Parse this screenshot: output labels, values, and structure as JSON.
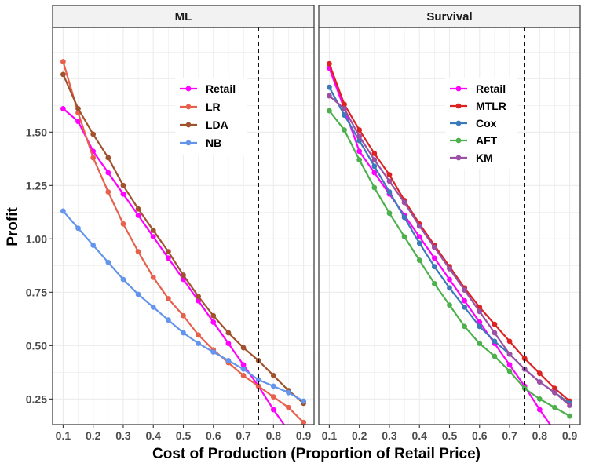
{
  "chart_data": {
    "type": "line",
    "xlabel": "Cost of Production (Proportion of Retail Price)",
    "ylabel": "Profit",
    "x": [
      0.1,
      0.15,
      0.2,
      0.25,
      0.3,
      0.35,
      0.4,
      0.45,
      0.5,
      0.55,
      0.6,
      0.65,
      0.7,
      0.75,
      0.8,
      0.85,
      0.9
    ],
    "xticks": [
      0.1,
      0.2,
      0.3,
      0.4,
      0.5,
      0.6,
      0.7,
      0.8,
      0.9
    ],
    "xtick_labels": [
      "0.1",
      "0.2",
      "0.3",
      "0.4",
      "0.5",
      "0.6",
      "0.7",
      "0.8",
      "0.9"
    ],
    "yticks": [
      0.25,
      0.5,
      0.75,
      1.0,
      1.25,
      1.5
    ],
    "ytick_labels": [
      "0.25",
      "0.50",
      "0.75",
      "1.00",
      "1.25",
      "1.50"
    ],
    "xlim": [
      0.065,
      0.935
    ],
    "ylim": [
      0.13,
      1.99
    ],
    "vline_x": 0.75,
    "grid": true,
    "panels": [
      {
        "title": "ML",
        "legend_position": "top-center",
        "series": [
          {
            "name": "Retail",
            "color": "#ff00ff",
            "values": [
              1.61,
              1.55,
              1.41,
              1.31,
              1.21,
              1.11,
              1.01,
              0.91,
              0.81,
              0.71,
              0.61,
              0.51,
              0.41,
              0.31,
              0.2,
              0.1,
              0.0
            ]
          },
          {
            "name": "LR",
            "color": "#e8604c",
            "values": [
              1.83,
              1.59,
              1.38,
              1.22,
              1.07,
              0.94,
              0.82,
              0.72,
              0.64,
              0.55,
              0.48,
              0.42,
              0.36,
              0.31,
              0.26,
              0.21,
              0.14
            ]
          },
          {
            "name": "LDA",
            "color": "#a0522d",
            "values": [
              1.77,
              1.61,
              1.49,
              1.38,
              1.25,
              1.14,
              1.04,
              0.94,
              0.83,
              0.73,
              0.64,
              0.56,
              0.49,
              0.43,
              0.36,
              0.29,
              0.23
            ]
          },
          {
            "name": "NB",
            "color": "#6495ed",
            "values": [
              1.13,
              1.05,
              0.97,
              0.89,
              0.81,
              0.74,
              0.68,
              0.62,
              0.56,
              0.51,
              0.47,
              0.43,
              0.39,
              0.34,
              0.31,
              0.28,
              0.24
            ]
          }
        ]
      },
      {
        "title": "Survival",
        "legend_position": "top-center",
        "series": [
          {
            "name": "Retail",
            "color": "#ff00ff",
            "values": [
              1.8,
              1.61,
              1.41,
              1.31,
              1.21,
              1.11,
              1.01,
              0.91,
              0.81,
              0.71,
              0.61,
              0.51,
              0.41,
              0.31,
              0.2,
              0.1,
              0.0
            ]
          },
          {
            "name": "MTLR",
            "color": "#dd2222",
            "values": [
              1.82,
              1.63,
              1.51,
              1.4,
              1.3,
              1.18,
              1.07,
              0.97,
              0.87,
              0.77,
              0.68,
              0.6,
              0.52,
              0.44,
              0.37,
              0.3,
              0.24
            ]
          },
          {
            "name": "Cox",
            "color": "#3a7ab8",
            "values": [
              1.71,
              1.58,
              1.46,
              1.34,
              1.22,
              1.1,
              0.98,
              0.87,
              0.77,
              0.68,
              0.59,
              0.52,
              0.46,
              0.39,
              0.33,
              0.28,
              0.23
            ]
          },
          {
            "name": "AFT",
            "color": "#4cb04c",
            "values": [
              1.6,
              1.51,
              1.37,
              1.24,
              1.12,
              1.01,
              0.9,
              0.79,
              0.69,
              0.59,
              0.51,
              0.45,
              0.38,
              0.3,
              0.25,
              0.21,
              0.17
            ]
          },
          {
            "name": "KM",
            "color": "#9b4fa5",
            "values": [
              1.67,
              1.61,
              1.48,
              1.37,
              1.27,
              1.17,
              1.06,
              0.96,
              0.86,
              0.76,
              0.66,
              0.56,
              0.46,
              0.39,
              0.33,
              0.28,
              0.22
            ]
          }
        ]
      }
    ]
  }
}
